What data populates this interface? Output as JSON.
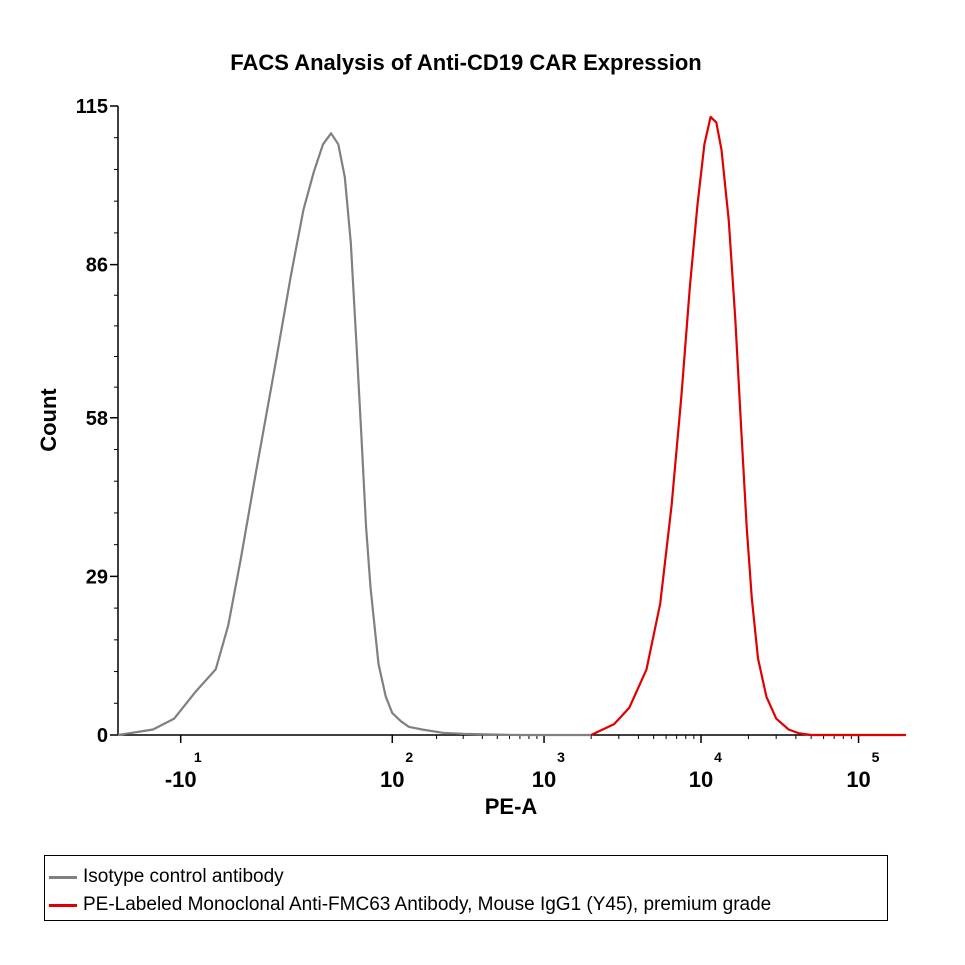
{
  "chart_data": {
    "type": "line",
    "title": "FACS Analysis of Anti-CD19 CAR Expression",
    "xlabel": "PE-A",
    "ylabel": "Count",
    "x_scale": "biexponential",
    "xlim": [
      -40,
      200000
    ],
    "ylim": [
      0,
      115
    ],
    "y_ticks": [
      {
        "value": 0,
        "label": "0"
      },
      {
        "value": 29,
        "label": "29"
      },
      {
        "value": 58,
        "label": "58"
      },
      {
        "value": 86,
        "label": "86"
      },
      {
        "value": 115,
        "label": "115"
      }
    ],
    "x_ticks": [
      {
        "value": -10,
        "base": "-10",
        "exp": "1"
      },
      {
        "value": 100,
        "base": "10",
        "exp": "2"
      },
      {
        "value": 1000,
        "base": "10",
        "exp": "3"
      },
      {
        "value": 10000,
        "base": "10",
        "exp": "4"
      },
      {
        "value": 100000,
        "base": "10",
        "exp": "5"
      }
    ],
    "grid": false,
    "legend_position": "bottom",
    "series": [
      {
        "name": "Isotype control antibody",
        "color": "#808080",
        "x": [
          -40,
          -20,
          -12,
          -6,
          -2,
          0,
          2,
          5,
          10,
          15,
          20,
          25,
          30,
          35,
          40,
          45,
          50,
          55,
          60,
          65,
          70,
          80,
          90,
          100,
          115,
          130,
          160,
          220,
          300,
          450,
          700,
          1000,
          2000
        ],
        "y": [
          0,
          1,
          3,
          8,
          12,
          20,
          32,
          48,
          68,
          84,
          96,
          103,
          108,
          110,
          108,
          102,
          90,
          72,
          55,
          38,
          27,
          13,
          7,
          4,
          2.5,
          1.5,
          1,
          0.4,
          0.2,
          0.1,
          0,
          0,
          0
        ]
      },
      {
        "name": "PE-Labeled Monoclonal Anti-FMC63 Antibody, Mouse IgG1 (Y45), premium grade",
        "color": "#e00000",
        "x": [
          2000,
          2800,
          3500,
          4500,
          5500,
          6500,
          7500,
          8500,
          9500,
          10500,
          11500,
          12500,
          13500,
          15000,
          16500,
          18000,
          19500,
          21000,
          23000,
          26000,
          30000,
          36000,
          42000,
          50000,
          100000,
          200000
        ],
        "y": [
          0,
          2,
          5,
          12,
          24,
          42,
          62,
          82,
          97,
          108,
          113,
          112,
          107,
          94,
          76,
          56,
          38,
          25,
          14,
          7,
          3,
          1,
          0.3,
          0,
          0,
          0
        ]
      }
    ]
  }
}
